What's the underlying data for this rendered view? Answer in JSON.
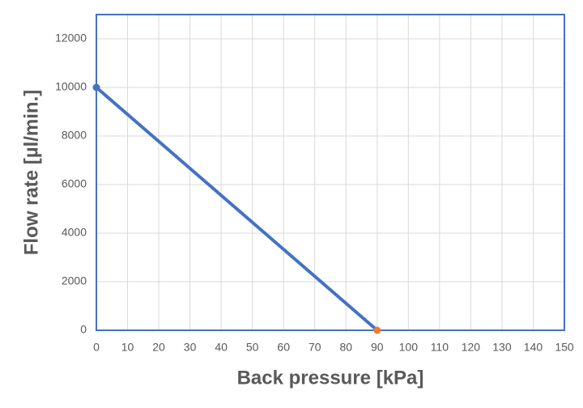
{
  "chart_data": {
    "type": "line",
    "xlabel": "Back pressure [kPa]",
    "ylabel": "Flow rate [µl/min.]",
    "series": [
      {
        "color": "#4472c4",
        "x": [
          0,
          90
        ],
        "values": [
          10000,
          0
        ]
      },
      {
        "color": "#ed7d31",
        "x": [
          90
        ],
        "values": [
          0
        ]
      }
    ],
    "xlim": [
      0,
      150
    ],
    "xticks": [
      0,
      10,
      20,
      30,
      40,
      50,
      60,
      70,
      80,
      90,
      100,
      110,
      120,
      130,
      140,
      150
    ],
    "ylim": [
      0,
      13000
    ],
    "yticks": [
      0,
      2000,
      4000,
      6000,
      8000,
      10000,
      12000
    ],
    "grid": true,
    "frame_color": "#4472c4"
  }
}
